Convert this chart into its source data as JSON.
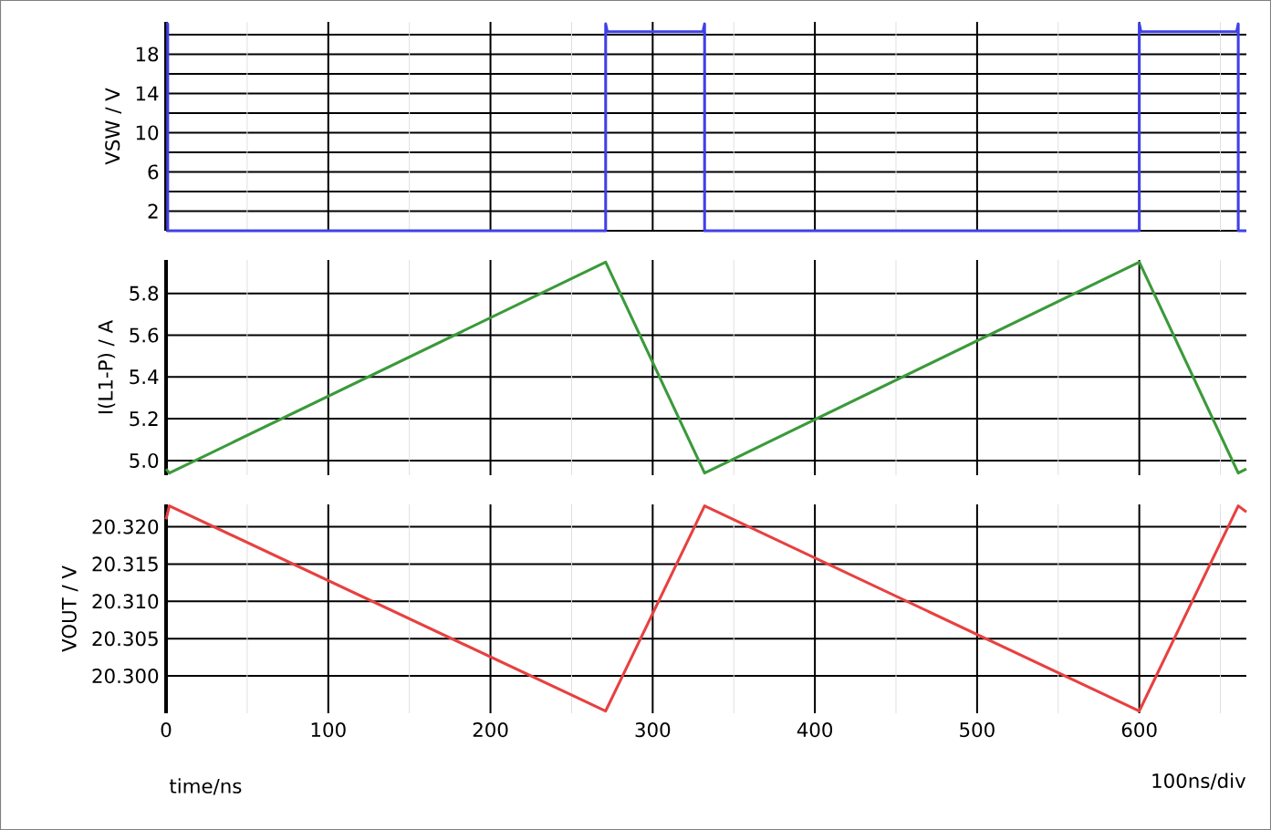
{
  "chart_data": [
    {
      "type": "line",
      "ylabel": "VSW / V",
      "xlim": [
        0,
        666
      ],
      "xticks": [
        0,
        {
          "value": 50,
          "label": null
        },
        100,
        {
          "value": 150,
          "label": null
        },
        200,
        {
          "value": 250,
          "label": null
        },
        300,
        {
          "value": 350,
          "label": null
        },
        400,
        {
          "value": 450,
          "label": null
        },
        500,
        {
          "value": 550,
          "label": null
        },
        600,
        {
          "value": 650,
          "label": null
        }
      ],
      "ylim": [
        0,
        21.3
      ],
      "yticks": [
        {
          "value": 0,
          "label": null
        },
        2,
        {
          "value": 4,
          "label": null
        },
        6,
        {
          "value": 8,
          "label": null
        },
        10,
        {
          "value": 12,
          "label": null
        },
        14,
        {
          "value": 16,
          "label": null
        },
        18,
        {
          "value": 20,
          "label": null
        }
      ],
      "grid": true,
      "tick_labels": "y",
      "x": [
        0,
        1,
        1,
        271,
        271,
        272,
        331,
        332,
        332,
        600,
        600,
        601,
        660,
        661,
        661,
        666
      ],
      "series": [
        {
          "color": "#4040e8",
          "values": [
            21.1,
            21.1,
            0,
            0,
            21.1,
            20.3,
            20.3,
            21.1,
            0,
            0,
            21.1,
            20.3,
            20.3,
            21.1,
            0,
            0
          ]
        }
      ]
    },
    {
      "type": "line",
      "ylabel": "I(L1-P) / A",
      "xlim": [
        0,
        666
      ],
      "xticks": [
        0,
        {
          "value": 50,
          "label": null
        },
        100,
        {
          "value": 150,
          "label": null
        },
        200,
        {
          "value": 250,
          "label": null
        },
        300,
        {
          "value": 350,
          "label": null
        },
        400,
        {
          "value": 450,
          "label": null
        },
        500,
        {
          "value": 550,
          "label": null
        },
        600,
        {
          "value": 650,
          "label": null
        }
      ],
      "ylim": [
        4.93,
        5.96
      ],
      "yticks": [
        {
          "value": 5,
          "label": "5.0"
        },
        5.2,
        5.4,
        5.6,
        5.8
      ],
      "grid": true,
      "tick_labels": "y",
      "x": [
        0,
        2,
        271,
        332,
        600,
        661,
        666
      ],
      "series": [
        {
          "color": "#3a9a3a",
          "values": [
            4.96,
            4.94,
            5.95,
            4.94,
            5.95,
            4.94,
            4.96
          ]
        }
      ]
    },
    {
      "type": "line",
      "ylabel": "VOUT / V",
      "xlabel": "time/ns",
      "annotations": [
        "100ns/div"
      ],
      "xlim": [
        0,
        666
      ],
      "xticks": [
        0,
        {
          "value": 50,
          "label": null
        },
        100,
        {
          "value": 150,
          "label": null
        },
        200,
        {
          "value": 250,
          "label": null
        },
        300,
        {
          "value": 350,
          "label": null
        },
        400,
        {
          "value": 450,
          "label": null
        },
        500,
        {
          "value": 550,
          "label": null
        },
        600,
        {
          "value": 650,
          "label": null
        }
      ],
      "ylim": [
        20.295,
        20.323
      ],
      "yticks": [
        {
          "value": 20.3,
          "label": "20.300"
        },
        {
          "value": 20.305,
          "label": "20.305"
        },
        {
          "value": 20.31,
          "label": "20.310"
        },
        {
          "value": 20.315,
          "label": "20.315"
        },
        {
          "value": 20.32,
          "label": "20.320"
        }
      ],
      "grid": true,
      "x": [
        0,
        2,
        271,
        332,
        600,
        661,
        666
      ],
      "series": [
        {
          "color": "#e84040",
          "values": [
            20.321,
            20.3228,
            20.2953,
            20.3228,
            20.2953,
            20.3228,
            20.322
          ]
        }
      ]
    }
  ]
}
